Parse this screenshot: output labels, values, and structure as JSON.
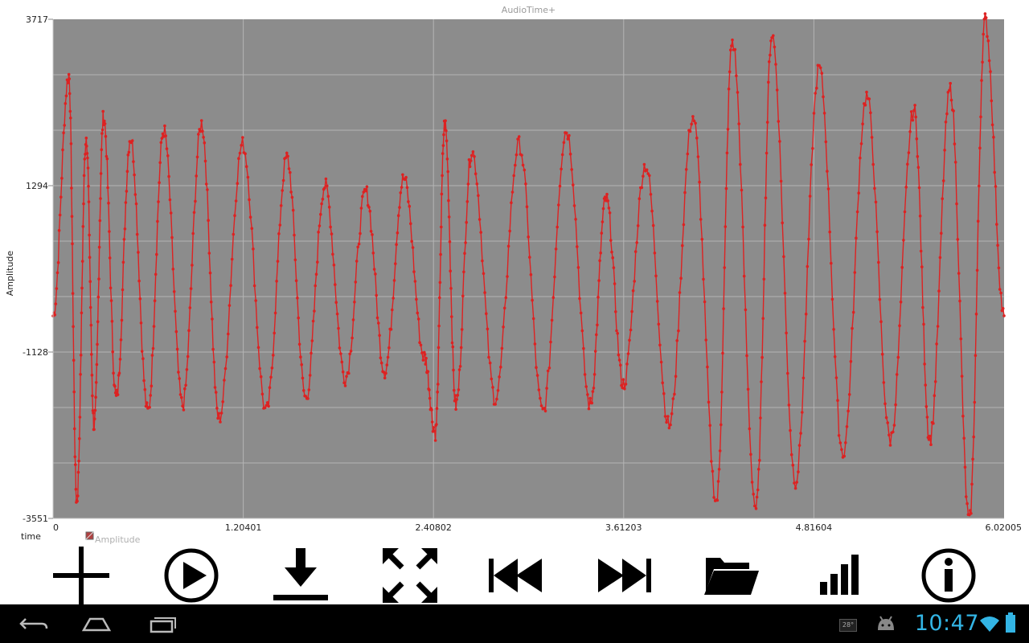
{
  "app": {
    "chart_title": "AudioTime+"
  },
  "chart_data": {
    "type": "line",
    "title": "AudioTime+",
    "xlabel": "time",
    "ylabel": "Amplitude",
    "xlim": [
      0,
      6.02005
    ],
    "ylim": [
      -3551,
      3717
    ],
    "x_tick_labels": [
      "0",
      "1.20401",
      "2.40802",
      "3.61203",
      "4.81604",
      "6.02005"
    ],
    "y_tick_labels": [
      "3717",
      "1294",
      "-1128",
      "-3551"
    ],
    "grid": true,
    "legend": {
      "label": "Amplitude",
      "position": "bottom-left"
    },
    "colors": {
      "line": "#dd2222",
      "plot_background": "#8c8c8c",
      "grid": "#b5b5b5"
    },
    "series": [
      {
        "name": "Amplitude",
        "x": [
          0,
          0.1,
          0.15,
          0.21,
          0.26,
          0.32,
          0.4,
          0.49,
          0.6,
          0.7,
          0.82,
          0.94,
          1.05,
          1.2,
          1.35,
          1.48,
          1.6,
          1.72,
          1.85,
          1.98,
          2.1,
          2.22,
          2.35,
          2.42,
          2.48,
          2.55,
          2.65,
          2.8,
          2.95,
          3.1,
          3.25,
          3.4,
          3.5,
          3.61,
          3.75,
          3.9,
          4.05,
          4.2,
          4.3,
          4.45,
          4.55,
          4.7,
          4.85,
          5.0,
          5.15,
          5.3,
          5.45,
          5.55,
          5.68,
          5.8,
          5.9,
          6.02
        ],
        "y": [
          -600,
          2900,
          -3300,
          2000,
          -2200,
          2300,
          -1800,
          2000,
          -2000,
          2100,
          -1900,
          2200,
          -2100,
          1900,
          -2000,
          1700,
          -1800,
          1300,
          -1500,
          1200,
          -1400,
          1400,
          -1200,
          -2300,
          2200,
          -1900,
          1800,
          -1800,
          1900,
          -2000,
          2100,
          -1900,
          1100,
          -1600,
          1600,
          -2200,
          2300,
          -3300,
          3400,
          -3400,
          3500,
          -3000,
          3000,
          -2600,
          2600,
          -2400,
          2400,
          -2400,
          2700,
          -3600,
          3700,
          -600
        ]
      }
    ]
  },
  "toolbar": {
    "buttons": [
      {
        "name": "add-button",
        "icon": "plus-icon"
      },
      {
        "name": "play-button",
        "icon": "play-circle-icon"
      },
      {
        "name": "download-button",
        "icon": "download-icon"
      },
      {
        "name": "fullscreen-button",
        "icon": "expand-arrows-icon"
      },
      {
        "name": "skip-back-button",
        "icon": "skip-previous-icon"
      },
      {
        "name": "skip-forward-button",
        "icon": "skip-next-icon"
      },
      {
        "name": "open-folder-button",
        "icon": "folder-icon"
      },
      {
        "name": "signal-button",
        "icon": "signal-bars-icon"
      },
      {
        "name": "info-button",
        "icon": "info-circle-icon"
      }
    ]
  },
  "status_bar": {
    "time": "10:47",
    "temperature": "28°",
    "icons": [
      "android-icon",
      "wifi-icon",
      "battery-icon"
    ],
    "nav": [
      "back-icon",
      "home-icon",
      "recent-apps-icon"
    ]
  }
}
